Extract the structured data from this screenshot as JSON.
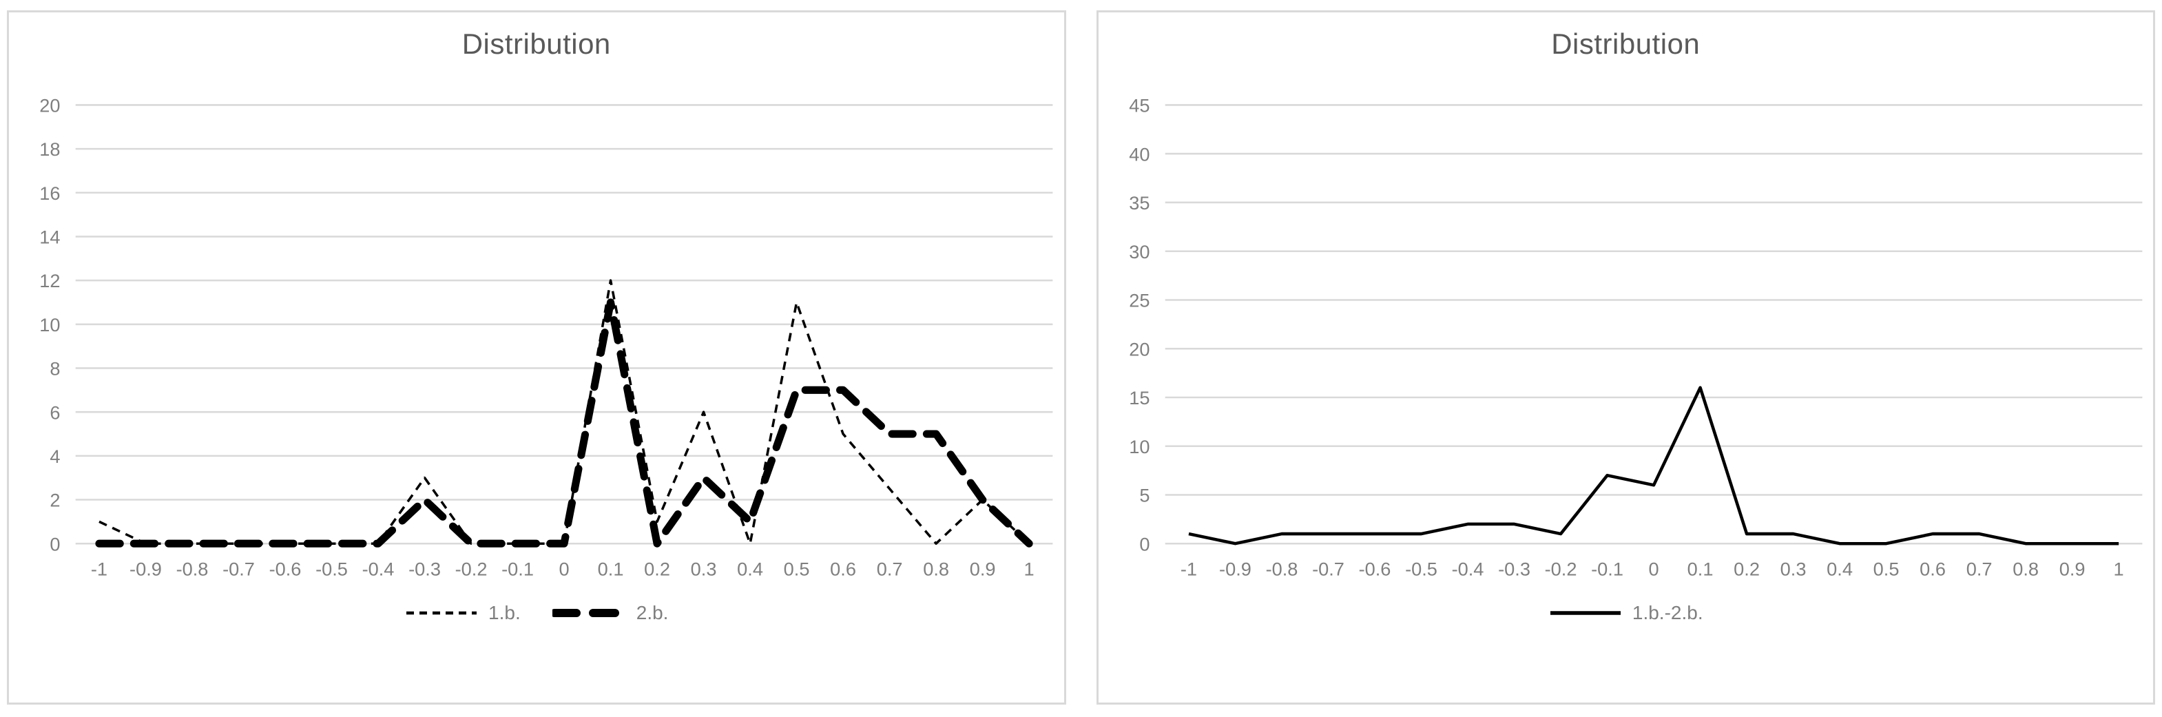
{
  "page": {
    "background": "#ffffff"
  },
  "theme": {
    "panel_border": "#d9d9d9",
    "gridline_color": "#d9d9d9",
    "tick_label_color": "#7f7f7f",
    "title_color": "#595959",
    "legend_text_color": "#7f7f7f",
    "series_color": "#000000"
  },
  "chart_data": [
    {
      "type": "line",
      "title": "Distribution",
      "xlabel": "",
      "ylabel": "",
      "grid": true,
      "legend_position": "bottom",
      "ylim": [
        0,
        20
      ],
      "yticks": [
        0,
        2,
        4,
        6,
        8,
        10,
        12,
        14,
        16,
        18,
        20
      ],
      "categories": [
        "-1",
        "-0.9",
        "-0.8",
        "-0.7",
        "-0.6",
        "-0.5",
        "-0.4",
        "-0.3",
        "-0.2",
        "-0.1",
        "0",
        "0.1",
        "0.2",
        "0.3",
        "0.4",
        "0.5",
        "0.6",
        "0.7",
        "0.8",
        "0.9",
        "1"
      ],
      "series": [
        {
          "name": "1.b.",
          "line_style": "thin-dashed",
          "color": "#000000",
          "values": [
            1,
            0,
            0,
            0,
            0,
            0,
            0,
            3,
            0,
            0,
            0,
            12,
            1,
            6,
            0,
            11,
            5,
            2.5,
            0,
            2,
            0
          ]
        },
        {
          "name": "2.b.",
          "line_style": "thick-dashed",
          "color": "#000000",
          "values": [
            0,
            0,
            0,
            0,
            0,
            0,
            0,
            2,
            0,
            0,
            0,
            11,
            0,
            3,
            1,
            7,
            7,
            5,
            5,
            2,
            0
          ]
        }
      ]
    },
    {
      "type": "line",
      "title": "Distribution",
      "xlabel": "",
      "ylabel": "",
      "grid": true,
      "legend_position": "bottom",
      "ylim": [
        0,
        45
      ],
      "yticks": [
        0,
        5,
        10,
        15,
        20,
        25,
        30,
        35,
        40,
        45
      ],
      "categories": [
        "-1",
        "-0.9",
        "-0.8",
        "-0.7",
        "-0.6",
        "-0.5",
        "-0.4",
        "-0.3",
        "-0.2",
        "-0.1",
        "0",
        "0.1",
        "0.2",
        "0.3",
        "0.4",
        "0.5",
        "0.6",
        "0.7",
        "0.8",
        "0.9",
        "1"
      ],
      "series": [
        {
          "name": "1.b.-2.b.",
          "line_style": "solid",
          "color": "#000000",
          "values": [
            1,
            0,
            1,
            1,
            1,
            1,
            2,
            2,
            1,
            7,
            6,
            16,
            1,
            1,
            0,
            0,
            1,
            1,
            0,
            0,
            0
          ]
        }
      ]
    }
  ]
}
